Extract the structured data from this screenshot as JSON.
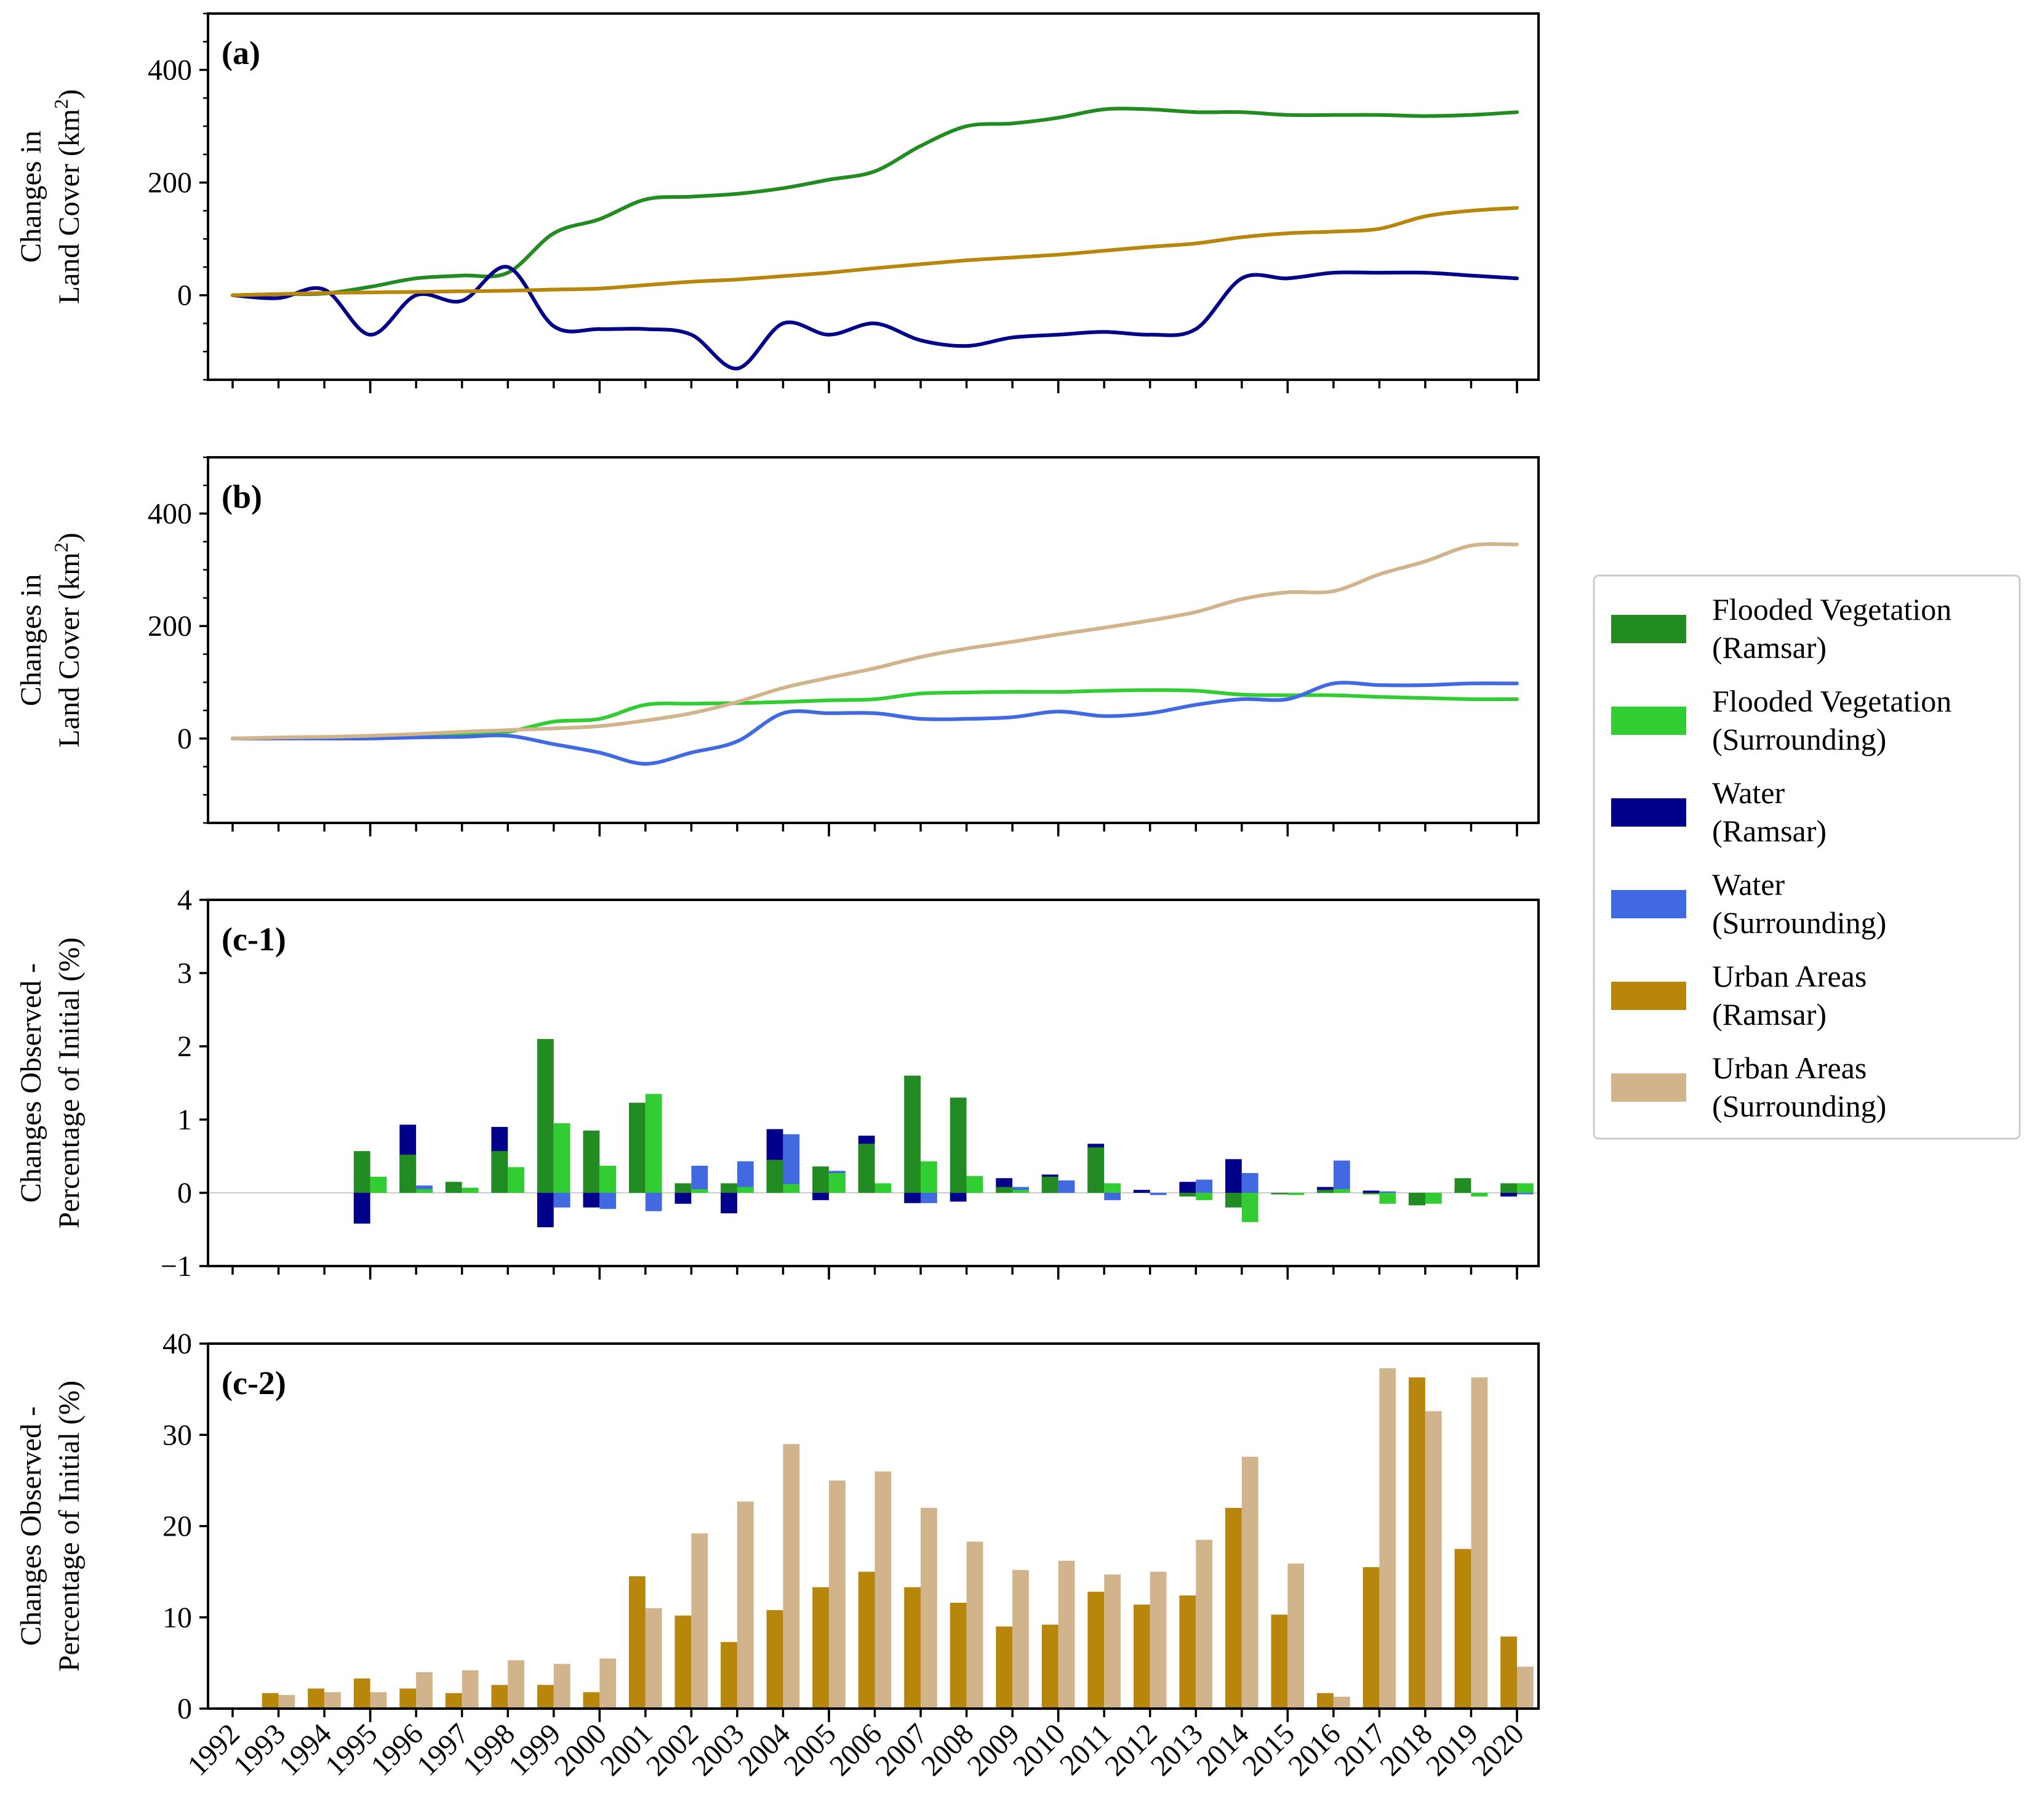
{
  "chart_data": [
    {
      "id": "a",
      "type": "line",
      "panel_label": "(a)",
      "ylabel_line1": "Changes in",
      "ylabel_line2": "Land Cover (km",
      "ylabel_sup": "2",
      "ylabel_close": ")",
      "ylim": [
        -150,
        500
      ],
      "yticks": [
        "0",
        "200",
        "400"
      ],
      "x": [
        1992,
        1993,
        1994,
        1995,
        1996,
        1997,
        1998,
        1999,
        2000,
        2001,
        2002,
        2003,
        2004,
        2005,
        2006,
        2007,
        2008,
        2009,
        2010,
        2011,
        2012,
        2013,
        2014,
        2015,
        2016,
        2017,
        2018,
        2019,
        2020
      ],
      "series": [
        {
          "name": "Flooded Vegetation (Ramsar)",
          "color": "#228B22",
          "values": [
            0,
            2,
            3,
            15,
            30,
            35,
            40,
            110,
            135,
            170,
            175,
            180,
            190,
            205,
            220,
            265,
            300,
            305,
            315,
            330,
            330,
            325,
            325,
            320,
            320,
            320,
            318,
            320,
            325
          ]
        },
        {
          "name": "Water (Ramsar)",
          "color": "#00008B",
          "values": [
            0,
            -5,
            10,
            -70,
            0,
            -10,
            50,
            -55,
            -60,
            -60,
            -70,
            -130,
            -50,
            -70,
            -50,
            -80,
            -90,
            -75,
            -70,
            -65,
            -70,
            -60,
            30,
            30,
            40,
            40,
            40,
            35,
            30
          ]
        },
        {
          "name": "Urban Areas (Ramsar)",
          "color": "#B8860B",
          "values": [
            0,
            2,
            4,
            5,
            6,
            7,
            8,
            10,
            12,
            18,
            24,
            28,
            34,
            40,
            48,
            55,
            62,
            67,
            72,
            79,
            86,
            92,
            103,
            110,
            113,
            118,
            140,
            150,
            155
          ]
        }
      ]
    },
    {
      "id": "b",
      "type": "line",
      "panel_label": "(b)",
      "ylabel_line1": "Changes in",
      "ylabel_line2": "Land Cover (km",
      "ylabel_sup": "2",
      "ylabel_close": ")",
      "ylim": [
        -150,
        500
      ],
      "yticks": [
        "0",
        "200",
        "400"
      ],
      "x": [
        1992,
        1993,
        1994,
        1995,
        1996,
        1997,
        1998,
        1999,
        2000,
        2001,
        2002,
        2003,
        2004,
        2005,
        2006,
        2007,
        2008,
        2009,
        2010,
        2011,
        2012,
        2013,
        2014,
        2015,
        2016,
        2017,
        2018,
        2019,
        2020
      ],
      "series": [
        {
          "name": "Flooded Vegetation (Surrounding)",
          "color": "#32CD32",
          "values": [
            0,
            1,
            2,
            3,
            5,
            8,
            12,
            30,
            35,
            60,
            62,
            63,
            65,
            68,
            70,
            80,
            82,
            83,
            83,
            85,
            86,
            85,
            78,
            77,
            77,
            74,
            72,
            70,
            70
          ]
        },
        {
          "name": "Water (Surrounding)",
          "color": "#4169E1",
          "values": [
            0,
            0,
            0,
            0,
            2,
            3,
            5,
            -10,
            -25,
            -45,
            -25,
            -5,
            45,
            45,
            45,
            35,
            35,
            38,
            48,
            40,
            45,
            60,
            70,
            70,
            98,
            95,
            95,
            98,
            98
          ]
        },
        {
          "name": "Urban Areas (Surrounding)",
          "color": "#D2B48C",
          "values": [
            0,
            2,
            3,
            5,
            8,
            12,
            15,
            18,
            22,
            32,
            45,
            65,
            90,
            108,
            125,
            145,
            160,
            172,
            185,
            197,
            210,
            225,
            248,
            260,
            262,
            292,
            315,
            343,
            345
          ]
        }
      ]
    },
    {
      "id": "c1",
      "type": "bar",
      "panel_label": "(c-1)",
      "ylabel_line1": "Changes Observed -",
      "ylabel_line2": "Percentage of Initial (%)",
      "ylim": [
        -1,
        4
      ],
      "yticks": [
        "−1",
        "0",
        "1",
        "2",
        "3",
        "4"
      ],
      "categories": [
        "1992",
        "1993",
        "1994",
        "1995",
        "1996",
        "1997",
        "1998",
        "1999",
        "2000",
        "2001",
        "2002",
        "2003",
        "2004",
        "2005",
        "2006",
        "2007",
        "2008",
        "2009",
        "2010",
        "2011",
        "2012",
        "2013",
        "2014",
        "2015",
        "2016",
        "2017",
        "2018",
        "2019",
        "2020"
      ],
      "series": [
        {
          "name": "Water (Ramsar)",
          "color": "#00008B",
          "offset": "left",
          "values": [
            0,
            0,
            0,
            -0.42,
            0.93,
            0.03,
            0.9,
            -0.47,
            -0.2,
            0.02,
            -0.15,
            -0.28,
            0.87,
            -0.1,
            0.78,
            -0.14,
            -0.12,
            0.2,
            0.25,
            0.67,
            0.04,
            0.15,
            0.46,
            -0.02,
            0.08,
            0.03,
            -0.17,
            0.05,
            -0.05
          ]
        },
        {
          "name": "Flooded Vegetation (Ramsar)",
          "color": "#228B22",
          "offset": "left",
          "values": [
            0,
            0,
            0,
            0.57,
            0.52,
            0.15,
            0.57,
            2.1,
            0.85,
            1.23,
            0.13,
            0.13,
            0.45,
            0.36,
            0.67,
            1.6,
            1.3,
            0.08,
            0.22,
            0.62,
            0.0,
            -0.05,
            -0.2,
            -0.02,
            0.04,
            -0.02,
            -0.17,
            0.2,
            0.13
          ]
        },
        {
          "name": "Water (Surrounding)",
          "color": "#4169E1",
          "offset": "right",
          "values": [
            0,
            0,
            0,
            0.02,
            0.1,
            0.02,
            0.05,
            -0.2,
            -0.22,
            -0.25,
            0.37,
            0.43,
            0.8,
            0.3,
            0.1,
            -0.14,
            0.05,
            0.08,
            0.17,
            -0.1,
            -0.03,
            0.18,
            0.27,
            -0.01,
            0.44,
            0.02,
            -0.12,
            -0.05,
            -0.02
          ]
        },
        {
          "name": "Flooded Vegetation (Surrounding)",
          "color": "#32CD32",
          "offset": "right",
          "values": [
            0,
            0,
            0,
            0.22,
            0.05,
            0.07,
            0.35,
            0.95,
            0.37,
            1.35,
            0.05,
            0.08,
            0.12,
            0.27,
            0.13,
            0.43,
            0.23,
            0.04,
            0.0,
            0.13,
            0.0,
            -0.1,
            -0.4,
            -0.03,
            0.05,
            -0.15,
            -0.15,
            -0.05,
            0.13
          ]
        }
      ]
    },
    {
      "id": "c2",
      "type": "bar",
      "panel_label": "(c-2)",
      "ylabel_line1": "Changes Observed -",
      "ylabel_line2": "Percentage of Initial (%)",
      "ylim": [
        0,
        40
      ],
      "yticks": [
        "0",
        "10",
        "20",
        "30",
        "40"
      ],
      "categories": [
        "1992",
        "1993",
        "1994",
        "1995",
        "1996",
        "1997",
        "1998",
        "1999",
        "2000",
        "2001",
        "2002",
        "2003",
        "2004",
        "2005",
        "2006",
        "2007",
        "2008",
        "2009",
        "2010",
        "2011",
        "2012",
        "2013",
        "2014",
        "2015",
        "2016",
        "2017",
        "2018",
        "2019",
        "2020"
      ],
      "series": [
        {
          "name": "Urban Areas (Ramsar)",
          "color": "#B8860B",
          "offset": "left",
          "values": [
            0,
            1.7,
            2.2,
            3.3,
            2.2,
            1.7,
            2.6,
            2.6,
            1.8,
            14.5,
            10.2,
            7.3,
            10.8,
            13.3,
            15.0,
            13.3,
            11.6,
            9.0,
            9.2,
            12.8,
            11.4,
            12.4,
            22.0,
            10.3,
            1.7,
            15.5,
            36.3,
            17.5,
            7.9
          ]
        },
        {
          "name": "Urban Areas (Surrounding)",
          "color": "#D2B48C",
          "offset": "right",
          "values": [
            0,
            1.5,
            1.8,
            1.8,
            4.0,
            4.2,
            5.3,
            4.9,
            5.5,
            11.0,
            19.2,
            22.7,
            29.0,
            25.0,
            26.0,
            22.0,
            18.3,
            15.2,
            16.2,
            14.7,
            15.0,
            18.5,
            27.6,
            15.9,
            1.3,
            37.3,
            32.6,
            36.3,
            4.6
          ]
        }
      ]
    }
  ],
  "x_tick_labels": [
    "1992",
    "1993",
    "1994",
    "1995",
    "1996",
    "1997",
    "1998",
    "1999",
    "2000",
    "2001",
    "2002",
    "2003",
    "2004",
    "2005",
    "2006",
    "2007",
    "2008",
    "2009",
    "2010",
    "2011",
    "2012",
    "2013",
    "2014",
    "2015",
    "2016",
    "2017",
    "2018",
    "2019",
    "2020"
  ],
  "legend": {
    "placement": "right",
    "entries": [
      {
        "line1": "Flooded Vegetation",
        "line2": "(Ramsar)",
        "color": "#228B22"
      },
      {
        "line1": "Flooded Vegetation",
        "line2": "(Surrounding)",
        "color": "#32CD32"
      },
      {
        "line1": "Water",
        "line2": "(Ramsar)",
        "color": "#00008B"
      },
      {
        "line1": "Water",
        "line2": "(Surrounding)",
        "color": "#4169E1"
      },
      {
        "line1": "Urban Areas",
        "line2": "(Ramsar)",
        "color": "#B8860B"
      },
      {
        "line1": "Urban Areas",
        "line2": "(Surrounding)",
        "color": "#D2B48C"
      }
    ]
  }
}
